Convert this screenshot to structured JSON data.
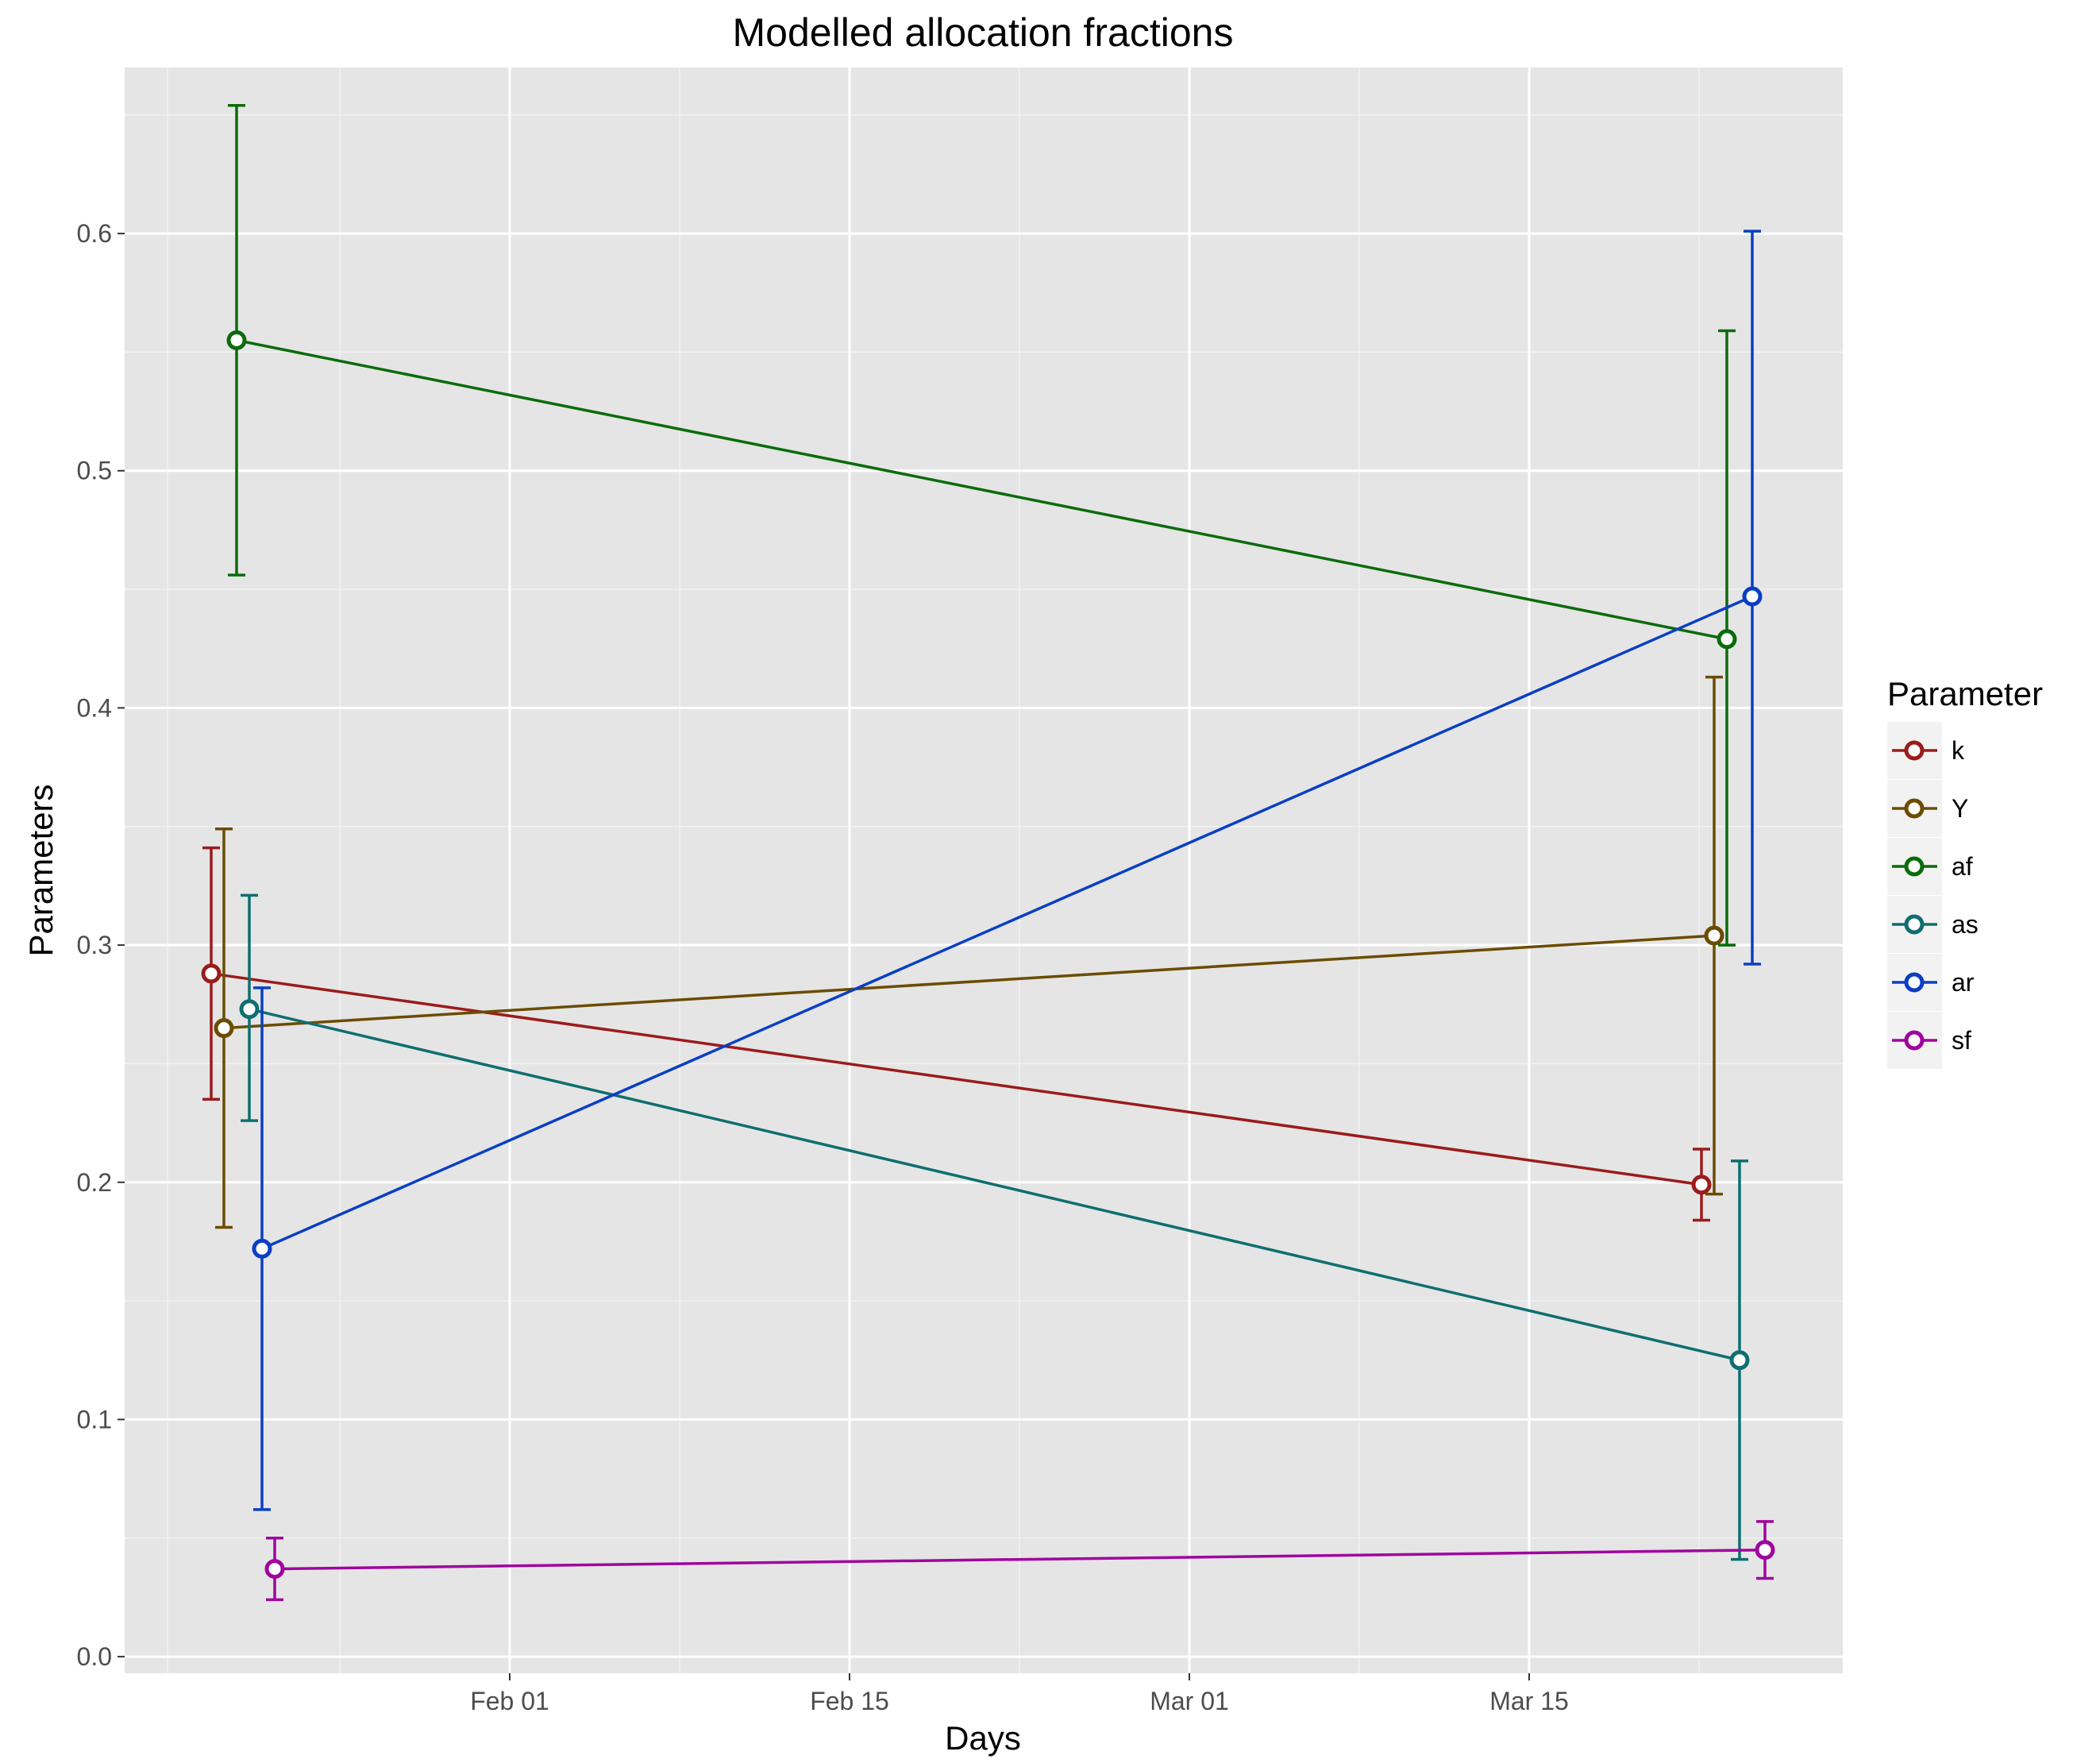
{
  "chart_data": {
    "type": "line",
    "title": "Modelled allocation fractions",
    "xlabel": "Days",
    "ylabel": "Parameters",
    "x_dates": [
      "Jan 21",
      "Mar 22"
    ],
    "x_ticks": [
      "Feb 01",
      "Feb 15",
      "Mar 01",
      "Mar 15"
    ],
    "y_ticks": [
      "0.0",
      "0.1",
      "0.2",
      "0.3",
      "0.4",
      "0.5",
      "0.6"
    ],
    "ylim": [
      -0.007,
      0.67
    ],
    "grid": true,
    "legend": {
      "title": "Parameter",
      "position": "right"
    },
    "series": [
      {
        "name": "k",
        "color": "#9b1b1b",
        "values": [
          0.288,
          0.199
        ],
        "lower": [
          0.235,
          0.184
        ],
        "upper": [
          0.341,
          0.214
        ]
      },
      {
        "name": "Y",
        "color": "#6b4c00",
        "values": [
          0.265,
          0.304
        ],
        "lower": [
          0.181,
          0.195
        ],
        "upper": [
          0.349,
          0.413
        ]
      },
      {
        "name": "af",
        "color": "#0b6b0b",
        "values": [
          0.555,
          0.429
        ],
        "lower": [
          0.456,
          0.3
        ],
        "upper": [
          0.654,
          0.559
        ]
      },
      {
        "name": "as",
        "color": "#0f6e70",
        "values": [
          0.273,
          0.125
        ],
        "lower": [
          0.226,
          0.041
        ],
        "upper": [
          0.321,
          0.209
        ]
      },
      {
        "name": "ar",
        "color": "#0a3fc4",
        "values": [
          0.172,
          0.447
        ],
        "lower": [
          0.062,
          0.292
        ],
        "upper": [
          0.282,
          0.601
        ]
      },
      {
        "name": "sf",
        "color": "#a0059e",
        "values": [
          0.037,
          0.045
        ],
        "lower": [
          0.024,
          0.033
        ],
        "upper": [
          0.05,
          0.057
        ]
      }
    ]
  }
}
